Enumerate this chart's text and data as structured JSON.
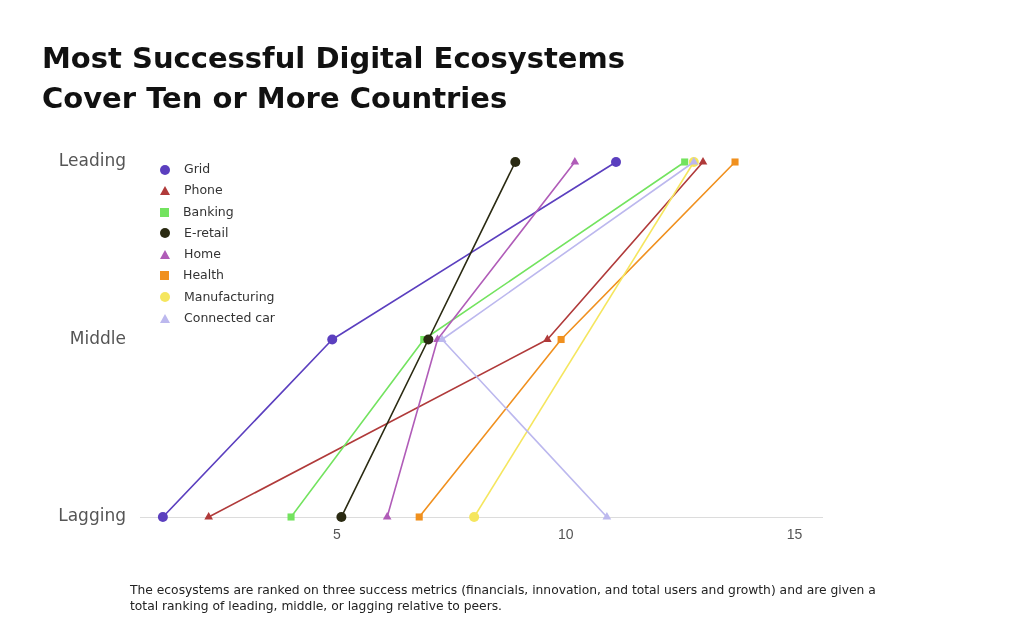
{
  "chart_data": {
    "type": "line",
    "orientation": "horizontal",
    "title": "Most Successful Digital Ecosystems Cover Ten or More Countries",
    "annotations": [
      "The ecosystems are ranked on three success metrics (financials, innovation, and total users and growth) and are given a total ranking of leading, middle, or lagging relative to peers."
    ],
    "categories": [
      "Leading",
      "Middle",
      "Lagging"
    ],
    "xlim": [
      0.7,
      15.6
    ],
    "xticks": [
      5,
      10,
      15
    ],
    "grid": false,
    "legend": "top left",
    "series": [
      {
        "name": "Grid",
        "color": "#5b3fbf",
        "marker": "circle",
        "values": [
          11.1,
          4.9,
          1.2
        ]
      },
      {
        "name": "Phone",
        "color": "#b03a3a",
        "marker": "triangle",
        "values": [
          13.0,
          9.6,
          2.2
        ]
      },
      {
        "name": "Banking",
        "color": "#73e35f",
        "marker": "square",
        "values": [
          12.6,
          6.9,
          4.0
        ]
      },
      {
        "name": "E-retail",
        "color": "#2a2a12",
        "marker": "circle",
        "values": [
          8.9,
          7.0,
          5.1
        ]
      },
      {
        "name": "Home",
        "color": "#b05cb8",
        "marker": "triangle",
        "values": [
          10.2,
          7.2,
          6.1
        ]
      },
      {
        "name": "Health",
        "color": "#f0901e",
        "marker": "square",
        "values": [
          13.7,
          9.9,
          6.8
        ]
      },
      {
        "name": "Manufacturing",
        "color": "#f5e65e",
        "marker": "circle",
        "values": [
          12.8,
          null,
          8.0
        ]
      },
      {
        "name": "Connected car",
        "color": "#bcb8ee",
        "marker": "triangle",
        "values": [
          12.8,
          7.3,
          10.9
        ]
      }
    ]
  }
}
